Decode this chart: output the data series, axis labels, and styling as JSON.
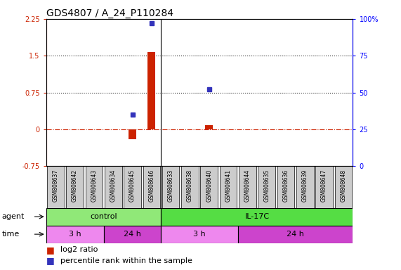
{
  "title": "GDS4807 / A_24_P110284",
  "samples": [
    "GSM808637",
    "GSM808642",
    "GSM808643",
    "GSM808634",
    "GSM808645",
    "GSM808646",
    "GSM808633",
    "GSM808638",
    "GSM808640",
    "GSM808641",
    "GSM808644",
    "GSM808635",
    "GSM808636",
    "GSM808639",
    "GSM808647",
    "GSM808648"
  ],
  "log2_ratio": [
    null,
    null,
    null,
    null,
    -0.2,
    1.58,
    null,
    null,
    0.08,
    null,
    null,
    null,
    null,
    null,
    null,
    null
  ],
  "percentile_rank_pct": [
    null,
    null,
    null,
    null,
    35,
    97,
    null,
    null,
    52,
    null,
    null,
    null,
    null,
    null,
    null,
    null
  ],
  "ylim_left": [
    -0.75,
    2.25
  ],
  "ylim_right": [
    0,
    100
  ],
  "yticks_left": [
    -0.75,
    0,
    0.75,
    1.5,
    2.25
  ],
  "yticks_right": [
    0,
    25,
    50,
    75,
    100
  ],
  "agent_groups": [
    {
      "label": "control",
      "start": 0,
      "end": 6,
      "color": "#90e878"
    },
    {
      "label": "IL-17C",
      "start": 6,
      "end": 16,
      "color": "#55dd44"
    }
  ],
  "time_groups": [
    {
      "label": "3 h",
      "start": 0,
      "end": 3,
      "color": "#ee88ee"
    },
    {
      "label": "24 h",
      "start": 3,
      "end": 6,
      "color": "#cc44cc"
    },
    {
      "label": "3 h",
      "start": 6,
      "end": 10,
      "color": "#ee88ee"
    },
    {
      "label": "24 h",
      "start": 10,
      "end": 16,
      "color": "#cc44cc"
    }
  ],
  "bar_color_red": "#cc2200",
  "bar_color_blue": "#3333bb",
  "zero_line_color": "#cc2200",
  "dotted_line_color": "#333333",
  "sample_box_color": "#cccccc",
  "title_fontsize": 10,
  "tick_fontsize": 7,
  "label_fontsize": 8,
  "legend_fontsize": 8,
  "sample_fontsize": 5.5
}
